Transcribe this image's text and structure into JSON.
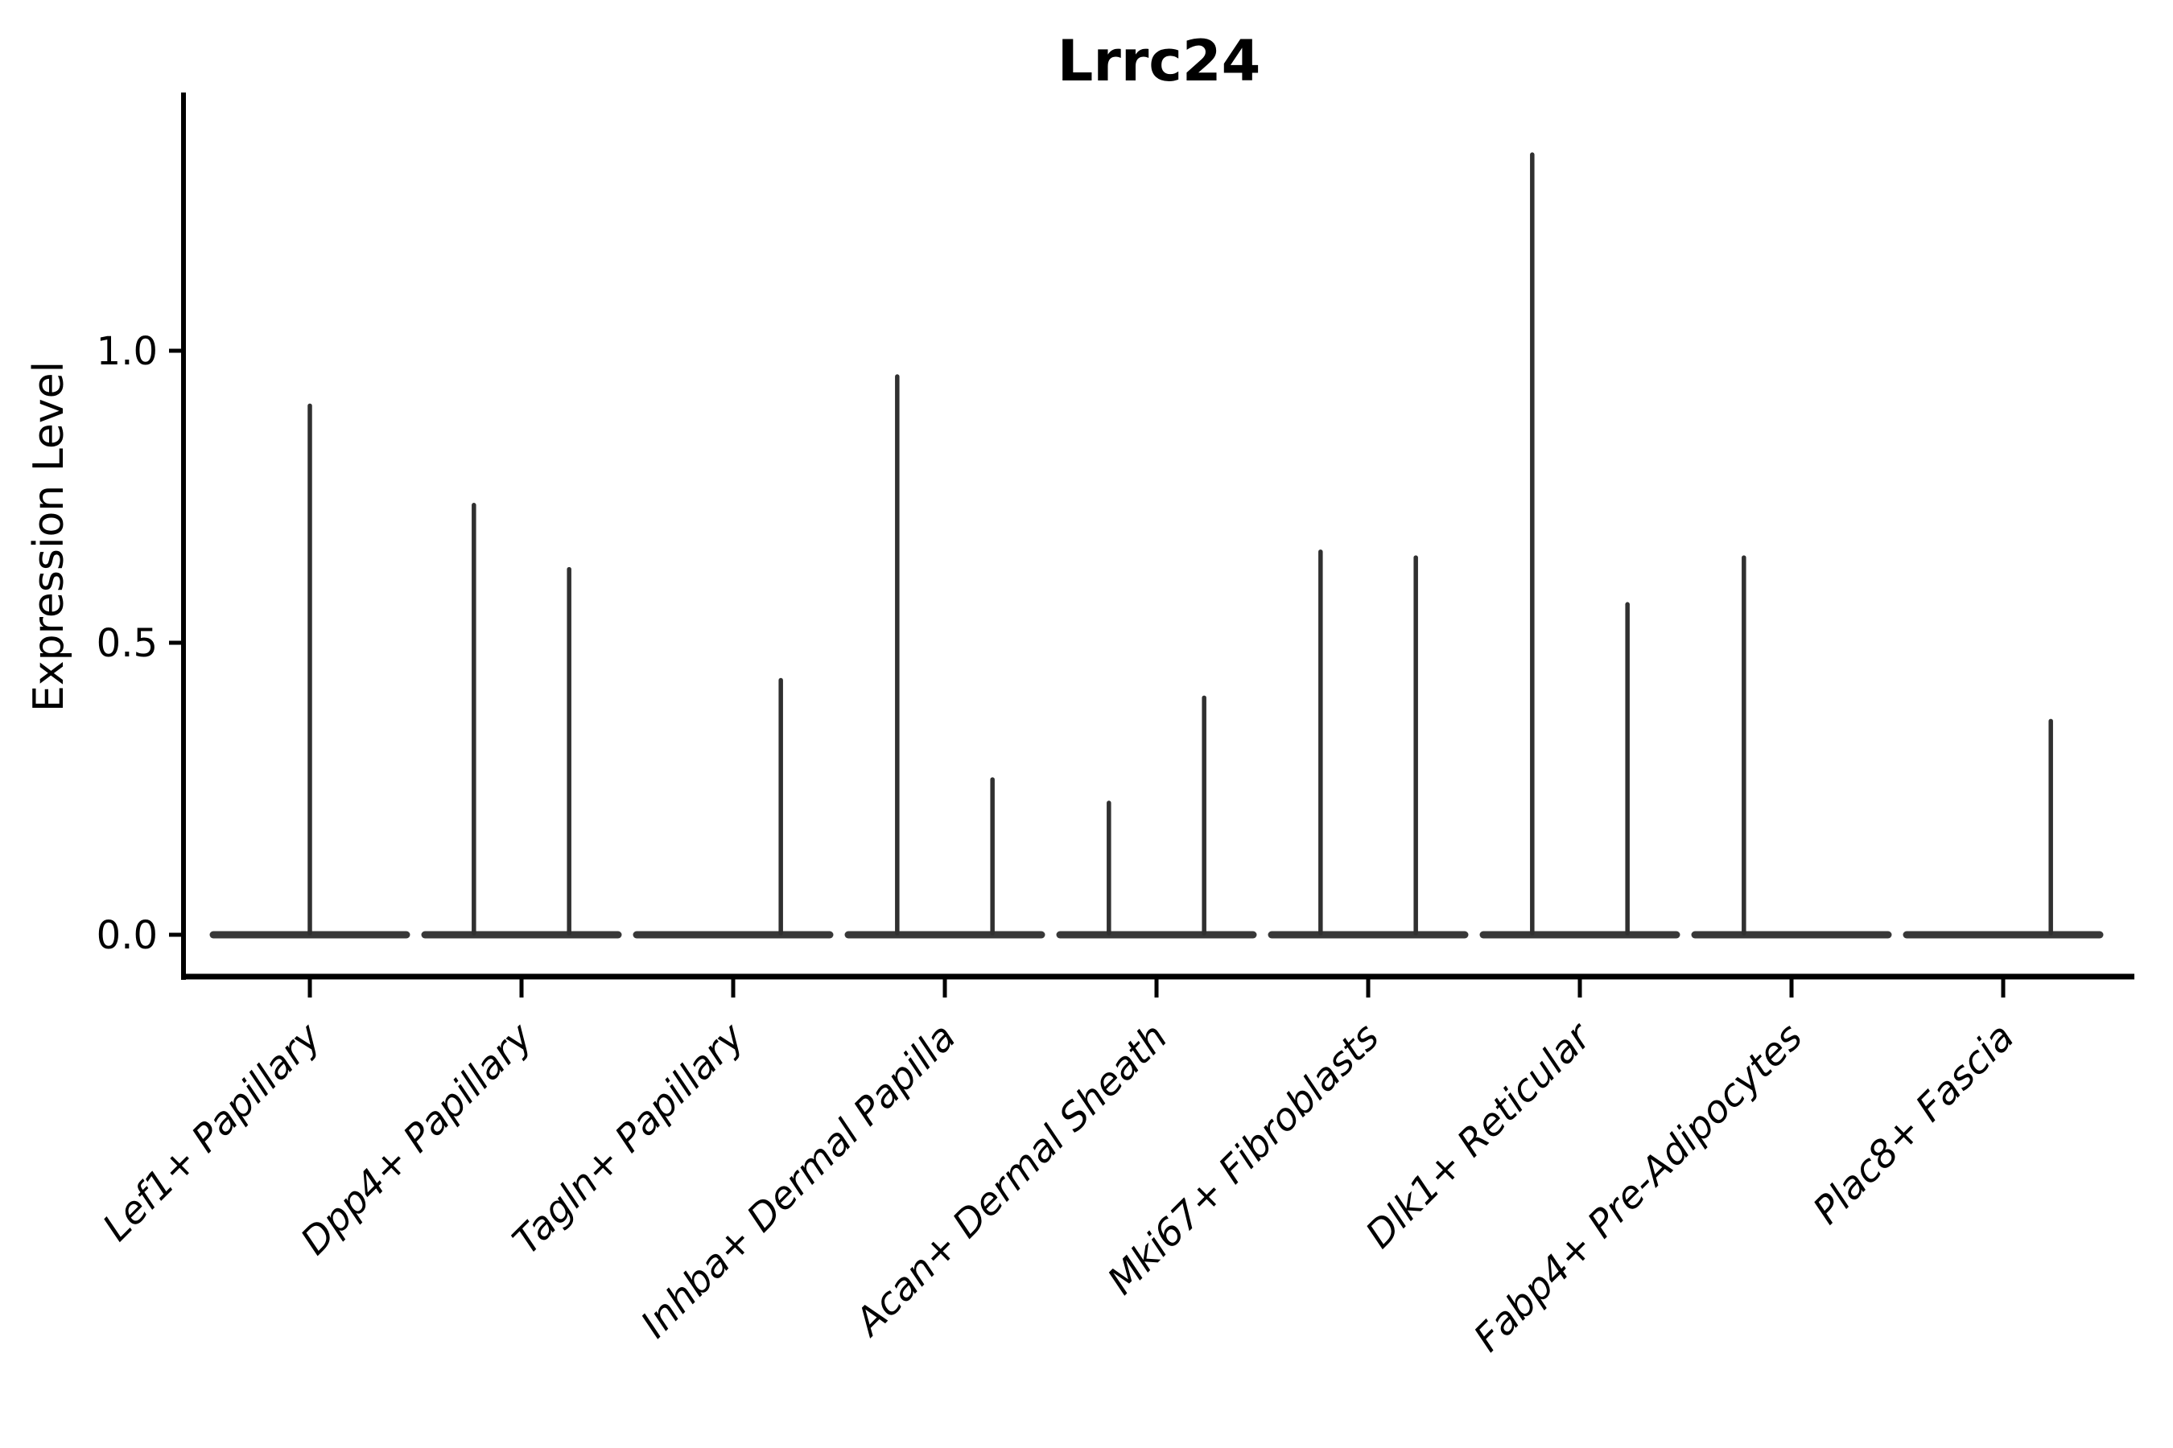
{
  "chart_data": {
    "type": "violin",
    "title": "Lrrc24",
    "ylabel": "Expression Level",
    "xlabel": "",
    "grid": false,
    "legend": null,
    "ylim": [
      -0.07,
      1.44
    ],
    "yticks": [
      {
        "value": 0.0,
        "label": "0.0"
      },
      {
        "value": 0.5,
        "label": "0.5"
      },
      {
        "value": 1.0,
        "label": "1.0"
      }
    ],
    "categories": [
      "Lef1+ Papillary",
      "Dpp4+ Papillary",
      "Tagln+ Papillary",
      "Inhba+ Dermal Papilla",
      "Acan+ Dermal Sheath",
      "Mki67+ Fibroblasts",
      "Dlk1+ Reticular",
      "Fabp4+ Pre-Adipocytes",
      "Plac8+ Fascia"
    ],
    "violins": [
      {
        "category": "Lef1+ Papillary",
        "baseline_value": 0.0,
        "spikes": [
          {
            "offset": 0.0,
            "max": 0.91
          }
        ]
      },
      {
        "category": "Dpp4+ Papillary",
        "baseline_value": 0.0,
        "spikes": [
          {
            "offset": -0.225,
            "max": 0.74
          },
          {
            "offset": 0.225,
            "max": 0.63
          }
        ]
      },
      {
        "category": "Tagln+ Papillary",
        "baseline_value": 0.0,
        "spikes": [
          {
            "offset": 0.225,
            "max": 0.44
          }
        ]
      },
      {
        "category": "Inhba+ Dermal Papilla",
        "baseline_value": 0.0,
        "spikes": [
          {
            "offset": -0.225,
            "max": 0.96
          },
          {
            "offset": 0.225,
            "max": 0.27
          }
        ]
      },
      {
        "category": "Acan+ Dermal Sheath",
        "baseline_value": 0.0,
        "spikes": [
          {
            "offset": -0.225,
            "max": 0.23
          },
          {
            "offset": 0.225,
            "max": 0.41
          }
        ]
      },
      {
        "category": "Mki67+ Fibroblasts",
        "baseline_value": 0.0,
        "spikes": [
          {
            "offset": -0.225,
            "max": 0.66
          },
          {
            "offset": 0.225,
            "max": 0.65
          }
        ]
      },
      {
        "category": "Dlk1+ Reticular",
        "baseline_value": 0.0,
        "spikes": [
          {
            "offset": -0.225,
            "max": 1.34
          },
          {
            "offset": 0.225,
            "max": 0.57
          }
        ]
      },
      {
        "category": "Fabp4+ Pre-Adipocytes",
        "baseline_value": 0.0,
        "spikes": [
          {
            "offset": -0.225,
            "max": 0.65
          }
        ]
      },
      {
        "category": "Plac8+ Fascia",
        "baseline_value": 0.0,
        "spikes": [
          {
            "offset": 0.225,
            "max": 0.37
          }
        ]
      }
    ],
    "violin_half_width": 0.456,
    "colors": {
      "spike": "#303030",
      "baseline": "#383838",
      "axis": "#000000",
      "text": "#000000",
      "background": "#ffffff"
    }
  }
}
